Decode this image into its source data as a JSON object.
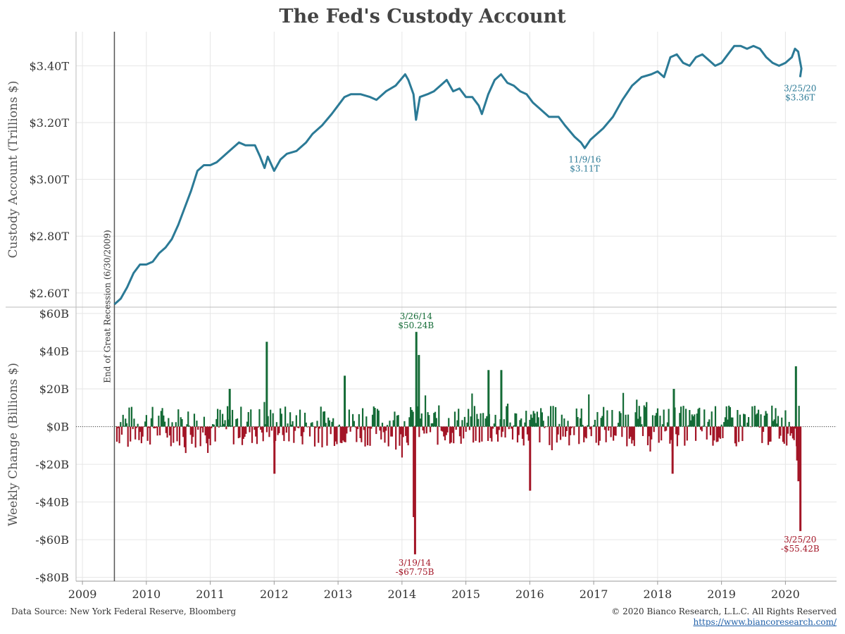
{
  "title": "The Fed's Custody Account",
  "footer": {
    "source": "Data Source: New York Federal Reserve, Bloomberg",
    "copyright": "© 2020 Bianco Research, L.L.C. All Rights Reserved",
    "url": "https://www.biancoresearch.com/"
  },
  "recession_label": "End of Great Recession (6/30/2009)",
  "colors": {
    "line": "#2b7a96",
    "positive": "#146b36",
    "negative": "#a31526",
    "grid": "#e6e6e6"
  },
  "chart_data": [
    {
      "type": "line",
      "ylabel": "Custody Account (Trillions $)",
      "ylim": [
        2.55,
        3.52
      ],
      "y_ticks": [
        2.6,
        2.8,
        3.0,
        3.2,
        3.4
      ],
      "y_tick_labels": [
        "$2.60T",
        "$2.80T",
        "$3.00T",
        "$3.20T",
        "$3.40T"
      ],
      "series": [
        {
          "values": [
            [
              2009.5,
              2.56
            ],
            [
              2009.6,
              2.58
            ],
            [
              2009.7,
              2.62
            ],
            [
              2009.8,
              2.67
            ],
            [
              2009.9,
              2.7
            ],
            [
              2010.0,
              2.7
            ],
            [
              2010.1,
              2.71
            ],
            [
              2010.2,
              2.74
            ],
            [
              2010.3,
              2.76
            ],
            [
              2010.4,
              2.79
            ],
            [
              2010.5,
              2.84
            ],
            [
              2010.6,
              2.9
            ],
            [
              2010.7,
              2.96
            ],
            [
              2010.8,
              3.03
            ],
            [
              2010.9,
              3.05
            ],
            [
              2011.0,
              3.05
            ],
            [
              2011.1,
              3.06
            ],
            [
              2011.2,
              3.08
            ],
            [
              2011.3,
              3.1
            ],
            [
              2011.45,
              3.13
            ],
            [
              2011.55,
              3.12
            ],
            [
              2011.7,
              3.12
            ],
            [
              2011.78,
              3.08
            ],
            [
              2011.85,
              3.04
            ],
            [
              2011.9,
              3.08
            ],
            [
              2012.0,
              3.03
            ],
            [
              2012.1,
              3.07
            ],
            [
              2012.2,
              3.09
            ],
            [
              2012.35,
              3.1
            ],
            [
              2012.5,
              3.13
            ],
            [
              2012.6,
              3.16
            ],
            [
              2012.75,
              3.19
            ],
            [
              2012.9,
              3.23
            ],
            [
              2013.0,
              3.26
            ],
            [
              2013.1,
              3.29
            ],
            [
              2013.2,
              3.3
            ],
            [
              2013.35,
              3.3
            ],
            [
              2013.5,
              3.29
            ],
            [
              2013.6,
              3.28
            ],
            [
              2013.75,
              3.31
            ],
            [
              2013.9,
              3.33
            ],
            [
              2014.05,
              3.37
            ],
            [
              2014.1,
              3.35
            ],
            [
              2014.18,
              3.3
            ],
            [
              2014.22,
              3.21
            ],
            [
              2014.28,
              3.29
            ],
            [
              2014.4,
              3.3
            ],
            [
              2014.5,
              3.31
            ],
            [
              2014.6,
              3.33
            ],
            [
              2014.7,
              3.35
            ],
            [
              2014.8,
              3.31
            ],
            [
              2014.9,
              3.32
            ],
            [
              2015.0,
              3.29
            ],
            [
              2015.1,
              3.29
            ],
            [
              2015.2,
              3.26
            ],
            [
              2015.25,
              3.23
            ],
            [
              2015.35,
              3.3
            ],
            [
              2015.45,
              3.35
            ],
            [
              2015.55,
              3.37
            ],
            [
              2015.65,
              3.34
            ],
            [
              2015.75,
              3.33
            ],
            [
              2015.85,
              3.31
            ],
            [
              2015.95,
              3.3
            ],
            [
              2016.05,
              3.27
            ],
            [
              2016.15,
              3.25
            ],
            [
              2016.3,
              3.22
            ],
            [
              2016.45,
              3.22
            ],
            [
              2016.55,
              3.19
            ],
            [
              2016.7,
              3.15
            ],
            [
              2016.8,
              3.13
            ],
            [
              2016.86,
              3.11
            ],
            [
              2016.95,
              3.14
            ],
            [
              2017.05,
              3.16
            ],
            [
              2017.15,
              3.18
            ],
            [
              2017.3,
              3.22
            ],
            [
              2017.45,
              3.28
            ],
            [
              2017.6,
              3.33
            ],
            [
              2017.75,
              3.36
            ],
            [
              2017.9,
              3.37
            ],
            [
              2018.0,
              3.38
            ],
            [
              2018.1,
              3.36
            ],
            [
              2018.2,
              3.43
            ],
            [
              2018.3,
              3.44
            ],
            [
              2018.4,
              3.41
            ],
            [
              2018.5,
              3.4
            ],
            [
              2018.6,
              3.43
            ],
            [
              2018.7,
              3.44
            ],
            [
              2018.8,
              3.42
            ],
            [
              2018.9,
              3.4
            ],
            [
              2019.0,
              3.41
            ],
            [
              2019.1,
              3.44
            ],
            [
              2019.2,
              3.47
            ],
            [
              2019.3,
              3.47
            ],
            [
              2019.4,
              3.46
            ],
            [
              2019.5,
              3.47
            ],
            [
              2019.6,
              3.46
            ],
            [
              2019.7,
              3.43
            ],
            [
              2019.8,
              3.41
            ],
            [
              2019.9,
              3.4
            ],
            [
              2020.0,
              3.41
            ],
            [
              2020.1,
              3.43
            ],
            [
              2020.15,
              3.46
            ],
            [
              2020.2,
              3.45
            ],
            [
              2020.25,
              3.39
            ],
            [
              2020.23,
              3.36
            ]
          ]
        }
      ],
      "annotations": [
        {
          "x": 2016.86,
          "y": 3.11,
          "date": "11/9/16",
          "value": "$3.11T"
        },
        {
          "x": 2020.23,
          "y": 3.36,
          "date": "3/25/20",
          "value": "$3.36T"
        }
      ]
    },
    {
      "type": "bar",
      "ylabel": "Weekly Change (Billions $)",
      "ylim": [
        -82,
        63
      ],
      "y_ticks": [
        60,
        40,
        20,
        0,
        -20,
        -40,
        -60,
        -80
      ],
      "y_tick_labels": [
        "$60B",
        "$40B",
        "$20B",
        "$0B",
        "-$20B",
        "-$40B",
        "-$60B",
        "-$80B"
      ],
      "highlight_bars": [
        {
          "x": 2011.88,
          "value": 45
        },
        {
          "x": 2014.22,
          "value": 50.24
        },
        {
          "x": 2014.26,
          "value": 38
        },
        {
          "x": 2014.2,
          "value": -67.75
        },
        {
          "x": 2014.18,
          "value": -48
        },
        {
          "x": 2020.23,
          "value": -55.42
        },
        {
          "x": 2020.16,
          "value": 32
        },
        {
          "x": 2020.2,
          "value": -29
        },
        {
          "x": 2020.18,
          "value": -18
        },
        {
          "x": 2016.0,
          "value": -34
        },
        {
          "x": 2015.35,
          "value": 30
        },
        {
          "x": 2015.55,
          "value": 30
        },
        {
          "x": 2013.1,
          "value": 27
        },
        {
          "x": 2012.0,
          "value": -25
        },
        {
          "x": 2018.23,
          "value": -25
        },
        {
          "x": 2018.25,
          "value": 20
        },
        {
          "x": 2011.3,
          "value": 20
        }
      ],
      "annotations": [
        {
          "x": 2014.22,
          "value": 50.24,
          "date": "3/26/14",
          "text": "$50.24B"
        },
        {
          "x": 2014.2,
          "value": -67.75,
          "date": "3/19/14",
          "text": "-$67.75B"
        },
        {
          "x": 2020.23,
          "value": -55.42,
          "date": "3/25/20",
          "text": "-$55.42B"
        }
      ]
    }
  ],
  "x_axis": {
    "xlim": [
      2008.9,
      2020.8
    ],
    "ticks": [
      2009,
      2010,
      2011,
      2012,
      2013,
      2014,
      2015,
      2016,
      2017,
      2018,
      2019,
      2020
    ],
    "recession_x": 2009.5
  }
}
